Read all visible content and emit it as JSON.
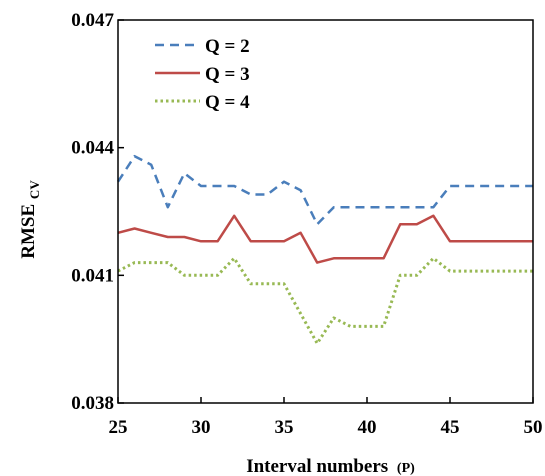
{
  "chart_data": {
    "type": "line",
    "xlabel": "Interval numbers",
    "xlabel_suffix": "(P)",
    "ylabel": "RMSE",
    "ylabel_sub": "CV",
    "xlim": [
      25,
      50
    ],
    "ylim": [
      0.038,
      0.047
    ],
    "xticks": [
      "25",
      "30",
      "35",
      "40",
      "45",
      "50"
    ],
    "yticks": [
      "0.038",
      "0.041",
      "0.044",
      "0.047"
    ],
    "legend_position": "top-left",
    "x": [
      25,
      26,
      27,
      28,
      29,
      30,
      31,
      32,
      33,
      34,
      35,
      36,
      37,
      38,
      39,
      40,
      41,
      42,
      43,
      44,
      45,
      46,
      47,
      48,
      49,
      50
    ],
    "series": [
      {
        "name": "Q = 2",
        "color": "#4a7ebb",
        "dash": "dashed",
        "values": [
          0.0432,
          0.0438,
          0.0436,
          0.0426,
          0.0434,
          0.0431,
          0.0431,
          0.0431,
          0.0429,
          0.0429,
          0.0432,
          0.043,
          0.0422,
          0.0426,
          0.0426,
          0.0426,
          0.0426,
          0.0426,
          0.0426,
          0.0426,
          0.0431,
          0.0431,
          0.0431,
          0.0431,
          0.0431,
          0.0431
        ]
      },
      {
        "name": "Q = 3",
        "color": "#be4b48",
        "dash": "solid",
        "values": [
          0.042,
          0.0421,
          0.042,
          0.0419,
          0.0419,
          0.0418,
          0.0418,
          0.0424,
          0.0418,
          0.0418,
          0.0418,
          0.042,
          0.0413,
          0.0414,
          0.0414,
          0.0414,
          0.0414,
          0.0422,
          0.0422,
          0.0424,
          0.0418,
          0.0418,
          0.0418,
          0.0418,
          0.0418,
          0.0418
        ]
      },
      {
        "name": "Q = 4",
        "color": "#98b954",
        "dash": "dotted",
        "values": [
          0.0411,
          0.0413,
          0.0413,
          0.0413,
          0.041,
          0.041,
          0.041,
          0.0414,
          0.0408,
          0.0408,
          0.0408,
          0.0401,
          0.0394,
          0.04,
          0.0398,
          0.0398,
          0.0398,
          0.041,
          0.041,
          0.0414,
          0.0411,
          0.0411,
          0.0411,
          0.0411,
          0.0411,
          0.0411
        ]
      }
    ]
  }
}
